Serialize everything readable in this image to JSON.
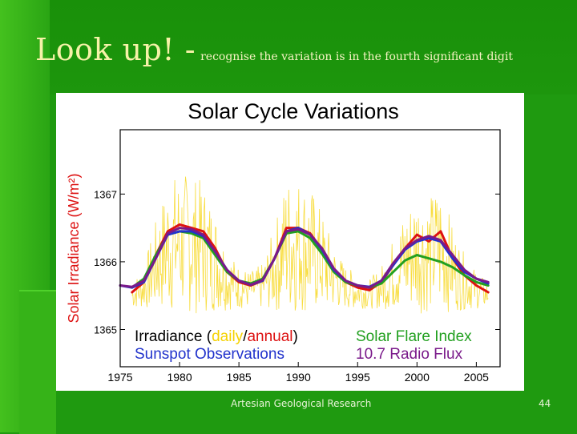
{
  "slide": {
    "title_main": "Look up! -",
    "title_sub": "recognise the variation is in the fourth significant digit",
    "footer": "Artesian Geological Research",
    "page_number": "44"
  },
  "colors": {
    "background": "#1f9a10",
    "title_text": "#f6f2a8",
    "daily": "#f5d200",
    "annual": "#dd1111",
    "solar_flare": "#22a020",
    "sunspot": "#2233cc",
    "radio_flux": "#7a1a8a"
  },
  "chart_data": {
    "type": "line",
    "title": "Solar Cycle Variations",
    "ylabel": "Solar Irradiance (W/m²)",
    "xlabel": "",
    "xlim": [
      1975,
      2007
    ],
    "ylim": [
      1364.45,
      1367.95
    ],
    "x_ticks": [
      1975,
      1980,
      1985,
      1990,
      1995,
      2000,
      2005
    ],
    "y_ticks": [
      1365,
      1366,
      1367
    ],
    "legend": {
      "placement": "bottom",
      "irradiance": {
        "prefix": "Irradiance (",
        "daily": "daily",
        "slash": "/",
        "annual": "annual",
        "suffix": ")"
      },
      "entries": [
        "Solar Flare Index",
        "Sunspot Observations",
        "10.7 Radio Flux"
      ]
    },
    "series": [
      {
        "name": "annual",
        "color": "#dd1111",
        "x": [
          1976,
          1977,
          1978,
          1979,
          1980,
          1981,
          1982,
          1983,
          1984,
          1985,
          1986,
          1987,
          1988,
          1989,
          1990,
          1991,
          1992,
          1993,
          1994,
          1995,
          1996,
          1997,
          1998,
          1999,
          2000,
          2001,
          2002,
          2003,
          2004,
          2005,
          2006
        ],
        "y": [
          1365.55,
          1365.7,
          1366.1,
          1366.45,
          1366.55,
          1366.5,
          1366.45,
          1366.2,
          1365.85,
          1365.7,
          1365.65,
          1365.72,
          1366.05,
          1366.5,
          1366.5,
          1366.42,
          1366.18,
          1365.88,
          1365.7,
          1365.62,
          1365.58,
          1365.7,
          1365.95,
          1366.2,
          1366.4,
          1366.3,
          1366.45,
          1366.05,
          1365.8,
          1365.65,
          1365.55
        ]
      },
      {
        "name": "Solar Flare Index",
        "color": "#22a020",
        "x": [
          1976,
          1977,
          1978,
          1979,
          1980,
          1981,
          1982,
          1983,
          1984,
          1985,
          1986,
          1987,
          1988,
          1989,
          1990,
          1991,
          1992,
          1993,
          1994,
          1995,
          1996,
          1997,
          1998,
          1999,
          2000,
          2001,
          2002,
          2003,
          2004,
          2005,
          2006
        ],
        "y": [
          1365.62,
          1365.75,
          1366.1,
          1366.4,
          1366.45,
          1366.42,
          1366.35,
          1366.1,
          1365.85,
          1365.72,
          1365.68,
          1365.75,
          1366.05,
          1366.42,
          1366.45,
          1366.35,
          1366.12,
          1365.85,
          1365.7,
          1365.65,
          1365.62,
          1365.68,
          1365.85,
          1366.02,
          1366.1,
          1366.05,
          1366.0,
          1365.92,
          1365.8,
          1365.7,
          1365.65
        ]
      },
      {
        "name": "Sunspot Observations",
        "color": "#2233cc",
        "x": [
          1975,
          1976,
          1977,
          1978,
          1979,
          1980,
          1981,
          1982,
          1983,
          1984,
          1985,
          1986,
          1987,
          1988,
          1989,
          1990,
          1991,
          1992,
          1993,
          1994,
          1995,
          1996,
          1997,
          1998,
          1999,
          2000,
          2001,
          2002,
          2003,
          2004,
          2005,
          2006
        ],
        "y": [
          1365.65,
          1365.62,
          1365.7,
          1366.05,
          1366.4,
          1366.45,
          1366.45,
          1366.38,
          1366.15,
          1365.88,
          1365.72,
          1365.66,
          1365.72,
          1366.05,
          1366.45,
          1366.5,
          1366.4,
          1366.18,
          1365.88,
          1365.72,
          1365.65,
          1365.63,
          1365.72,
          1365.95,
          1366.18,
          1366.3,
          1366.35,
          1366.3,
          1366.05,
          1365.85,
          1365.75,
          1365.68
        ]
      },
      {
        "name": "10.7 Radio Flux",
        "color": "#7a1a8a",
        "x": [
          1975,
          1976,
          1977,
          1978,
          1979,
          1980,
          1981,
          1982,
          1983,
          1984,
          1985,
          1986,
          1987,
          1988,
          1989,
          1990,
          1991,
          1992,
          1993,
          1994,
          1995,
          1996,
          1997,
          1998,
          1999,
          2000,
          2001,
          2002,
          2003,
          2004,
          2005,
          2006
        ],
        "y": [
          1365.65,
          1365.63,
          1365.72,
          1366.05,
          1366.42,
          1366.5,
          1366.48,
          1366.4,
          1366.15,
          1365.88,
          1365.72,
          1365.66,
          1365.73,
          1366.05,
          1366.45,
          1366.48,
          1366.4,
          1366.2,
          1365.9,
          1365.72,
          1365.65,
          1365.62,
          1365.72,
          1365.98,
          1366.2,
          1366.32,
          1366.38,
          1366.32,
          1366.1,
          1365.88,
          1365.75,
          1365.7
        ]
      }
    ]
  }
}
